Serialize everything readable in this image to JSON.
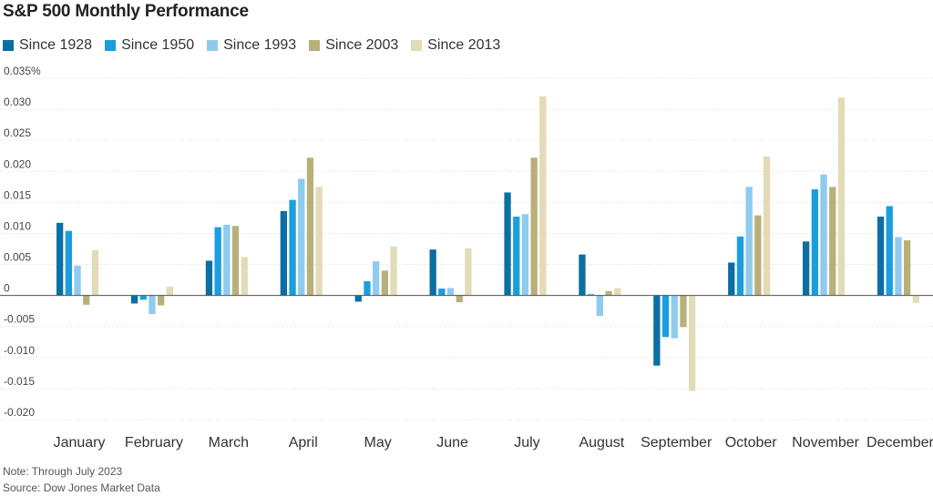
{
  "chart_data": {
    "type": "bar",
    "title": "S&P 500 Monthly Performance",
    "categories": [
      "January",
      "February",
      "March",
      "April",
      "May",
      "June",
      "July",
      "August",
      "September",
      "October",
      "November",
      "December"
    ],
    "series": [
      {
        "name": "Since 1928",
        "color": "#0b6fa4",
        "values": [
          0.0117,
          -0.0013,
          0.0056,
          0.0136,
          -0.001,
          0.0074,
          0.0166,
          0.0066,
          -0.0113,
          0.0053,
          0.0087,
          0.0127
        ]
      },
      {
        "name": "Since 1950",
        "color": "#1a9ee0",
        "values": [
          0.0104,
          -0.0007,
          0.011,
          0.0154,
          0.0023,
          0.0011,
          0.0127,
          0.0002,
          -0.0067,
          0.0095,
          0.0171,
          0.0144
        ]
      },
      {
        "name": "Since 1993",
        "color": "#8ecbee",
        "values": [
          0.0048,
          -0.003,
          0.0114,
          0.0188,
          0.0055,
          0.0012,
          0.0131,
          -0.0033,
          -0.0069,
          0.0175,
          0.0195,
          0.0094
        ]
      },
      {
        "name": "Since 2003",
        "color": "#b8b07a",
        "values": [
          -0.0015,
          -0.0016,
          0.0112,
          0.0222,
          0.004,
          -0.0011,
          0.0222,
          0.0007,
          -0.0051,
          0.0129,
          0.0175,
          0.0089
        ]
      },
      {
        "name": "Since 2013",
        "color": "#e2dbb7",
        "values": [
          0.0073,
          0.0014,
          0.0062,
          0.0175,
          0.0079,
          0.0076,
          0.0321,
          0.0012,
          -0.0154,
          0.0224,
          0.0319,
          -0.0012
        ]
      }
    ],
    "ylim": [
      -0.02,
      0.035
    ],
    "yticks": [
      {
        "value": 0.035,
        "label": "0.035%"
      },
      {
        "value": 0.03,
        "label": "0.030"
      },
      {
        "value": 0.025,
        "label": "0.025"
      },
      {
        "value": 0.02,
        "label": "0.020"
      },
      {
        "value": 0.015,
        "label": "0.015"
      },
      {
        "value": 0.01,
        "label": "0.010"
      },
      {
        "value": 0.005,
        "label": "0.005"
      },
      {
        "value": 0,
        "label": "0"
      },
      {
        "value": -0.005,
        "label": "-0.005"
      },
      {
        "value": -0.01,
        "label": "-0.010"
      },
      {
        "value": -0.015,
        "label": "-0.015"
      },
      {
        "value": -0.02,
        "label": "-0.020"
      }
    ],
    "grid": true,
    "legend_position": "top-left",
    "notes": [
      "Note: Through July 2023",
      "Source: Dow Jones Market Data"
    ]
  }
}
